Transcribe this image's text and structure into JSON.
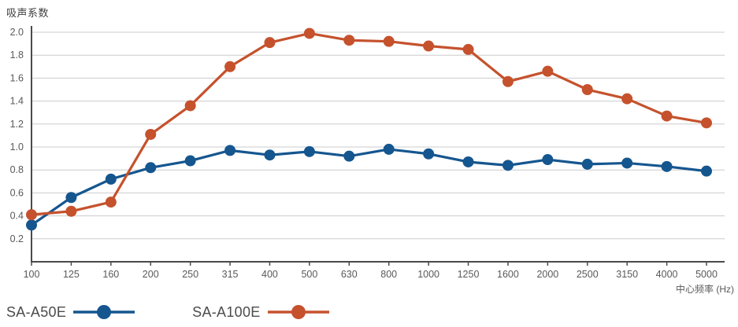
{
  "chart_data": {
    "type": "line",
    "title": "吸声系数",
    "xlabel": "中心频率 (Hz)",
    "ylabel": "吸声系数",
    "categories": [
      "100",
      "125",
      "160",
      "200",
      "250",
      "315",
      "400",
      "500",
      "630",
      "800",
      "1000",
      "1250",
      "1600",
      "2000",
      "2500",
      "3150",
      "4000",
      "5000"
    ],
    "yticks": [
      "0.2",
      "0.4",
      "0.6",
      "0.8",
      "1.0",
      "1.2",
      "1.4",
      "1.6",
      "1.8",
      "2.0"
    ],
    "ylim": [
      0,
      2.05
    ],
    "grid": "horizontal-only",
    "legend_position": "bottom-left",
    "series": [
      {
        "name": "SA-A50E",
        "color": "#15568f",
        "values": [
          0.32,
          0.56,
          0.72,
          0.82,
          0.88,
          0.97,
          0.93,
          0.96,
          0.92,
          0.98,
          0.94,
          0.87,
          0.84,
          0.89,
          0.85,
          0.86,
          0.83,
          0.79
        ]
      },
      {
        "name": "SA-A100E",
        "color": "#c5522d",
        "values": [
          0.41,
          0.44,
          0.52,
          1.11,
          1.36,
          1.7,
          1.91,
          1.99,
          1.93,
          1.92,
          1.88,
          1.85,
          1.57,
          1.66,
          1.5,
          1.42,
          1.27,
          1.21
        ]
      }
    ],
    "style": {
      "grid_color": "#cccccc",
      "axis_color": "#4a4a4a",
      "tick_label_color": "#595959",
      "title_color": "#3f3f3f"
    }
  }
}
